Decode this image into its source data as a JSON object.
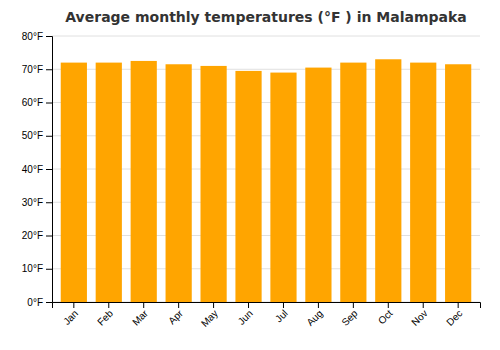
{
  "chart_data": {
    "type": "bar",
    "title": "Average monthly temperatures (°F ) in Malampaka",
    "categories": [
      "Jan",
      "Feb",
      "Mar",
      "Apr",
      "May",
      "Jun",
      "Jul",
      "Aug",
      "Sep",
      "Oct",
      "Nov",
      "Dec"
    ],
    "values": [
      72,
      72,
      72.5,
      71.5,
      71,
      69.5,
      69,
      70.5,
      72,
      73,
      72,
      71.5
    ],
    "color": "#FFA500",
    "ylim": [
      0,
      80
    ],
    "yticks": [
      {
        "value": 0,
        "label": "0°F"
      },
      {
        "value": 10,
        "label": "10°F"
      },
      {
        "value": 20,
        "label": "20°F"
      },
      {
        "value": 30,
        "label": "30°F"
      },
      {
        "value": 40,
        "label": "40°F"
      },
      {
        "value": 50,
        "label": "50°F"
      },
      {
        "value": 60,
        "label": "60°F"
      },
      {
        "value": 70,
        "label": "70°F"
      },
      {
        "value": 80,
        "label": "80°F"
      }
    ],
    "grid": true
  }
}
